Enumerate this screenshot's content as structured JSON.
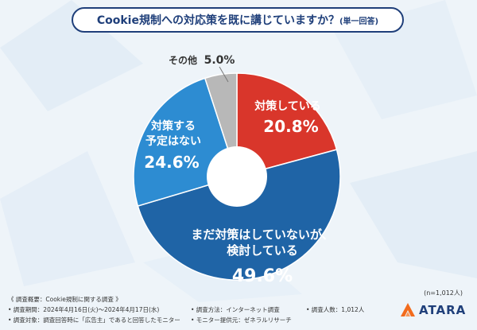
{
  "title": "Cookie規制への対応策を既に講じていますか？",
  "title_note": "(単一回答)",
  "sample_note": "(n=1,012人)",
  "chart_data": {
    "type": "pie",
    "donut": true,
    "title": "Cookie規制への対応策を既に講じていますか？",
    "slices": [
      {
        "label": "対策している",
        "value": 20.8,
        "display": "20.8%",
        "color": "#d9362b"
      },
      {
        "label": "まだ対策はしていないが、検討している",
        "value": 49.6,
        "display": "49.6%",
        "color": "#1f64a6"
      },
      {
        "label": "対策する予定はない",
        "value": 24.6,
        "display": "24.6%",
        "color": "#2d8cd2"
      },
      {
        "label": "その他",
        "value": 5.0,
        "display": "5.0%",
        "color": "#b8b8b8"
      }
    ]
  },
  "labels": {
    "s0_line1": "対策している",
    "s0_value": "20.8%",
    "s1_line1": "まだ対策はしていないが、",
    "s1_line2": "検討している",
    "s1_value": "49.6%",
    "s2_line1": "対策する",
    "s2_line2": "予定はない",
    "s2_value": "24.6%",
    "s3_line1": "その他",
    "s3_value": "5.0%"
  },
  "footer": {
    "overview": "《 調査概要：Cookie規制に関する調査 》",
    "period": "• 調査期間：2024年4月16日(火)～2024年4月17日(水)",
    "target": "• 調査対象：調査回答時に「広告主」であると回答したモニター",
    "method": "• 調査方法：インターネット調査",
    "provider": "• モニター提供元：ゼネラルリサーチ",
    "count": "• 調査人数：1,012人"
  },
  "logo": {
    "text": "ATARA",
    "icon": "atara-logo-icon",
    "color": "#f26b1d"
  }
}
